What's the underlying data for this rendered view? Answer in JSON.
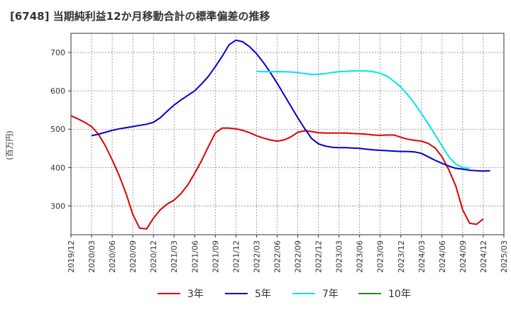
{
  "chart_data": {
    "type": "line",
    "title": "[6748]  当期純利益12か月移動合計の標準偏差の推移",
    "ylabel": "(百万円)",
    "xlabel": "",
    "ylim": [
      225,
      750
    ],
    "yticks": [
      300,
      400,
      500,
      600,
      700
    ],
    "xlim": [
      "2019-12",
      "2025-03"
    ],
    "xticks": [
      "2019/12",
      "2020/03",
      "2020/06",
      "2020/09",
      "2020/12",
      "2021/03",
      "2021/06",
      "2021/09",
      "2021/12",
      "2022/03",
      "2022/06",
      "2022/09",
      "2022/12",
      "2023/03",
      "2023/06",
      "2023/09",
      "2023/12",
      "2024/03",
      "2024/06",
      "2024/09",
      "2024/12",
      "2025/03"
    ],
    "grid": true,
    "legend_position": "bottom",
    "series": [
      {
        "name": "3年",
        "color": "#dd0000",
        "start": "2019-12",
        "values": [
          535,
          527,
          518,
          507,
          487,
          457,
          420,
          380,
          333,
          278,
          242,
          240,
          268,
          290,
          305,
          315,
          332,
          355,
          385,
          418,
          455,
          490,
          503,
          503,
          501,
          497,
          491,
          483,
          477,
          472,
          469,
          472,
          480,
          492,
          496,
          494,
          491,
          490,
          490,
          490,
          490,
          489,
          488,
          487,
          485,
          484,
          485,
          485,
          479,
          474,
          471,
          469,
          463,
          451,
          428,
          394,
          352,
          290,
          255,
          252,
          266
        ]
      },
      {
        "name": "5年",
        "color": "#0000cc",
        "start": "2020-03",
        "values": [
          483,
          487,
          492,
          497,
          501,
          504,
          507,
          510,
          513,
          518,
          530,
          547,
          563,
          576,
          588,
          600,
          618,
          638,
          663,
          690,
          720,
          732,
          728,
          715,
          697,
          674,
          648,
          620,
          590,
          560,
          530,
          502,
          476,
          462,
          456,
          453,
          452,
          452,
          451,
          450,
          448,
          446,
          445,
          444,
          443,
          442,
          442,
          441,
          437,
          428,
          419,
          411,
          404,
          398,
          396,
          393,
          392,
          391,
          392
        ]
      },
      {
        "name": "7年",
        "color": "#00e5ee",
        "start": "2022-03",
        "values": [
          651,
          650,
          650,
          650,
          650,
          649,
          648,
          645,
          643,
          643,
          645,
          648,
          650,
          651,
          652,
          652,
          652,
          650,
          646,
          638,
          625,
          610,
          590,
          567,
          541,
          514,
          485,
          456,
          428,
          409,
          400,
          398
        ]
      },
      {
        "name": "10年",
        "color": "#228b22",
        "start": "2024-12",
        "values": []
      }
    ]
  }
}
